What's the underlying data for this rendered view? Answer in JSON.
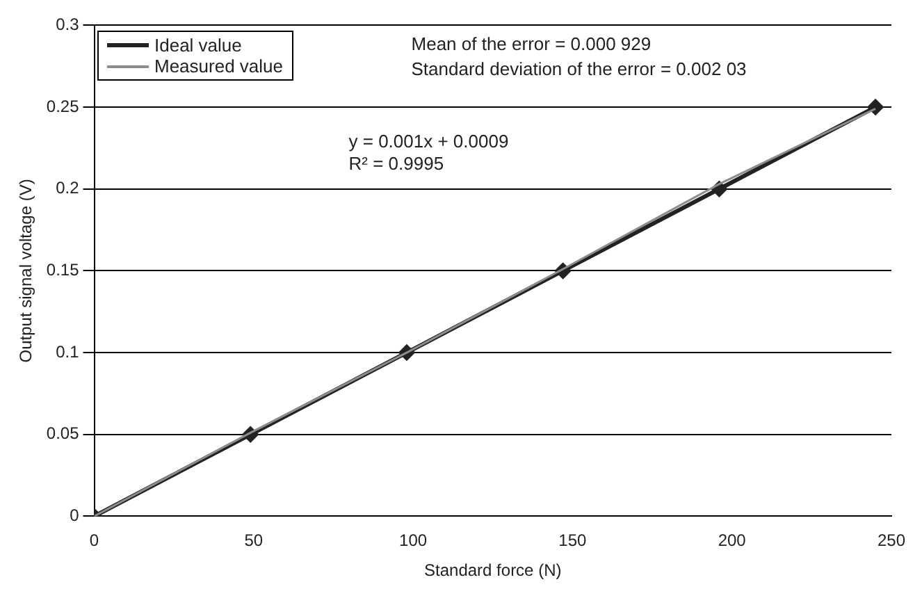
{
  "chart_data": {
    "type": "line",
    "xlabel": "Standard force (N)",
    "ylabel": "Output signal voltage (V)",
    "x": [
      0,
      49,
      98,
      147,
      196,
      245
    ],
    "series": [
      {
        "name": "Ideal value",
        "color": "#222222",
        "values": [
          0,
          0.05,
          0.1,
          0.15,
          0.2,
          0.25
        ],
        "marker": "diamond"
      },
      {
        "name": "Measured value",
        "color": "#8c8c8c",
        "values": [
          0,
          0.051,
          0.1,
          0.151,
          0.203,
          0.249
        ],
        "marker": "none"
      }
    ],
    "xlim": [
      0,
      250
    ],
    "xticks": [
      0,
      50,
      100,
      150,
      200,
      250
    ],
    "ylim": [
      0,
      0.3
    ],
    "yticks": [
      0,
      0.05,
      0.1,
      0.15,
      0.2,
      0.25,
      0.3
    ],
    "grid": "y",
    "legend": "top left",
    "annotations": [
      "Mean of the error = 0.000 929",
      "Standard deviation of the error = 0.002 03",
      "y = 0.001x + 0.0009",
      "R² = 0.9995"
    ]
  }
}
